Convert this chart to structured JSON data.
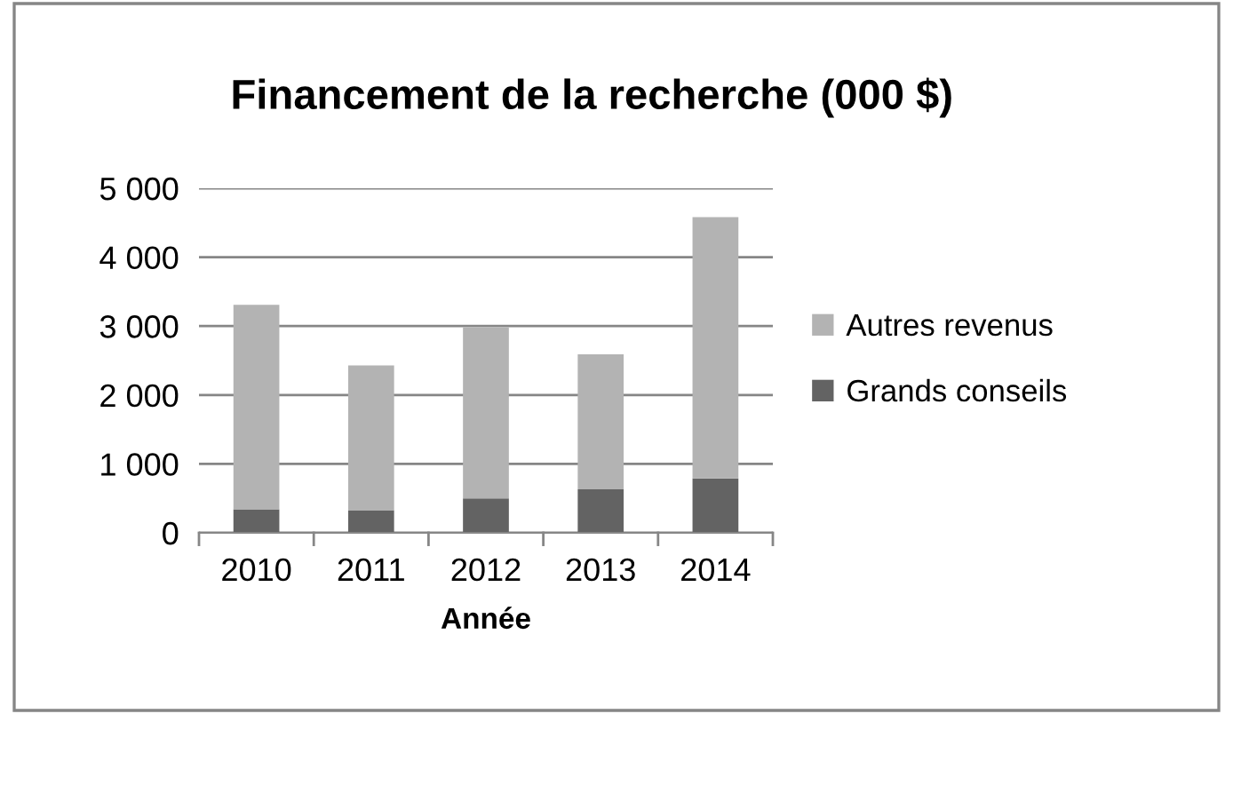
{
  "chart_data": {
    "type": "bar",
    "title": "Financement de la recherche (000 $)",
    "xlabel": "Année",
    "categories": [
      "2010",
      "2011",
      "2012",
      "2013",
      "2014"
    ],
    "stacked": true,
    "series": [
      {
        "name": "Grands conseils",
        "color": "#636363",
        "values": [
          340,
          330,
          500,
          630,
          790
        ]
      },
      {
        "name": "Autres revenus",
        "color": "#b3b3b3",
        "values": [
          2970,
          2100,
          2480,
          1960,
          3790
        ]
      }
    ],
    "ylim": [
      0,
      5000
    ],
    "yticks": [
      {
        "value": 0,
        "label": "0"
      },
      {
        "value": 1000,
        "label": "1 000"
      },
      {
        "value": 2000,
        "label": "2 000"
      },
      {
        "value": 3000,
        "label": "3 000"
      },
      {
        "value": 4000,
        "label": "4 000"
      },
      {
        "value": 5000,
        "label": "5 000"
      }
    ],
    "grid": "y",
    "legend": "right"
  }
}
